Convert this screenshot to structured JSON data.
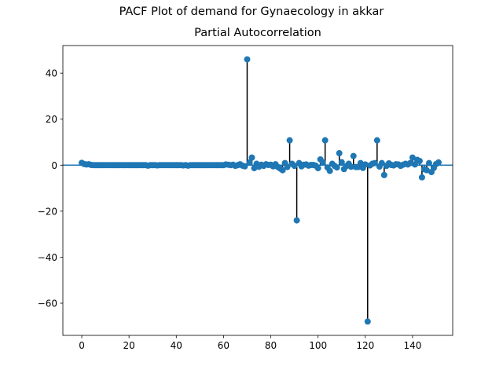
{
  "figure": {
    "suptitle": "PACF Plot of demand for Gynaecology in akkar"
  },
  "chart_data": {
    "type": "scatter",
    "title": "Partial Autocorrelation",
    "xlabel": "",
    "ylabel": "",
    "xlim": [
      -8,
      157
    ],
    "ylim": [
      -74,
      52
    ],
    "xticks": [
      0,
      20,
      40,
      60,
      80,
      100,
      120,
      140
    ],
    "yticks": [
      -60,
      -40,
      -20,
      0,
      20,
      40
    ],
    "grid": false,
    "zero_line": true,
    "colors": {
      "marker": "#1f77b4",
      "stem": "#000000",
      "zero_line": "#1f77b4"
    },
    "series": [
      {
        "lags": [
          0,
          1,
          2,
          3,
          4,
          5,
          6,
          7,
          8,
          9,
          10,
          11,
          12,
          13,
          14,
          15,
          16,
          17,
          18,
          19,
          20,
          21,
          22,
          23,
          24,
          25,
          26,
          27,
          28,
          29,
          30,
          31,
          32,
          33,
          34,
          35,
          36,
          37,
          38,
          39,
          40,
          41,
          42,
          43,
          44,
          45,
          46,
          47,
          48,
          49,
          50,
          51,
          52,
          53,
          54,
          55,
          56,
          57,
          58,
          59,
          60,
          61,
          62,
          63,
          64,
          65,
          66,
          67,
          68,
          69,
          70,
          71,
          72,
          73,
          74,
          75,
          76,
          77,
          78,
          79,
          80,
          81,
          82,
          83,
          84,
          85,
          86,
          87,
          88,
          89,
          90,
          91,
          92,
          93,
          94,
          95,
          96,
          97,
          98,
          99,
          100,
          101,
          102,
          103,
          104,
          105,
          106,
          107,
          108,
          109,
          110,
          111,
          112,
          113,
          114,
          115,
          116,
          117,
          118,
          119,
          120,
          121,
          122,
          123,
          124,
          125,
          126,
          127,
          128,
          129,
          130,
          131,
          132,
          133,
          134,
          135,
          136,
          137,
          138,
          139,
          140,
          141,
          142,
          143,
          144,
          145,
          146,
          147,
          148,
          149,
          150,
          151
        ],
        "values": [
          1.0,
          0.5,
          0.3,
          0.4,
          0.1,
          0,
          0,
          0,
          0,
          0,
          0,
          0,
          0,
          0,
          0,
          0,
          0,
          0,
          0,
          0,
          0,
          0,
          0,
          0,
          0,
          0,
          0,
          0,
          -0.2,
          0,
          0,
          0,
          -0.1,
          0,
          0,
          0,
          0,
          0,
          0,
          0,
          0,
          0,
          0,
          -0.1,
          0,
          -0.2,
          0,
          0,
          0,
          0,
          0,
          0,
          0,
          0,
          0,
          0,
          0,
          0,
          0,
          0,
          0,
          0.3,
          0.2,
          0,
          0.2,
          -0.3,
          0,
          0.4,
          -0.2,
          -0.5,
          46,
          1.2,
          3.3,
          -1.3,
          0.6,
          -0.7,
          0.2,
          -0.3,
          0.4,
          0.1,
          0.2,
          -0.5,
          0.4,
          -0.8,
          -1.5,
          -2.2,
          0.9,
          -0.8,
          10.8,
          0.6,
          -0.3,
          -24,
          0.9,
          -0.5,
          0.2,
          0.3,
          -0.2,
          0.1,
          0.1,
          -0.2,
          -1.3,
          2.5,
          1.2,
          10.8,
          -1.0,
          -2.5,
          0.6,
          -0.3,
          -1.0,
          5.2,
          1.3,
          -1.7,
          -0.4,
          0.6,
          -0.7,
          4.0,
          -0.8,
          -0.8,
          0.9,
          -1.2,
          0.3,
          -68,
          -0.1,
          0.6,
          0.9,
          10.8,
          -0.6,
          0.9,
          -4.3,
          -0.3,
          0.8,
          0.1,
          -0.1,
          0.4,
          0.3,
          -0.3,
          0.2,
          0.6,
          0.3,
          0.9,
          3.3,
          0.3,
          2.3,
          1.8,
          -5.3,
          -1.8,
          -2.2,
          0.9,
          -3.0,
          -1.2,
          0.5,
          1.2
        ]
      }
    ]
  }
}
